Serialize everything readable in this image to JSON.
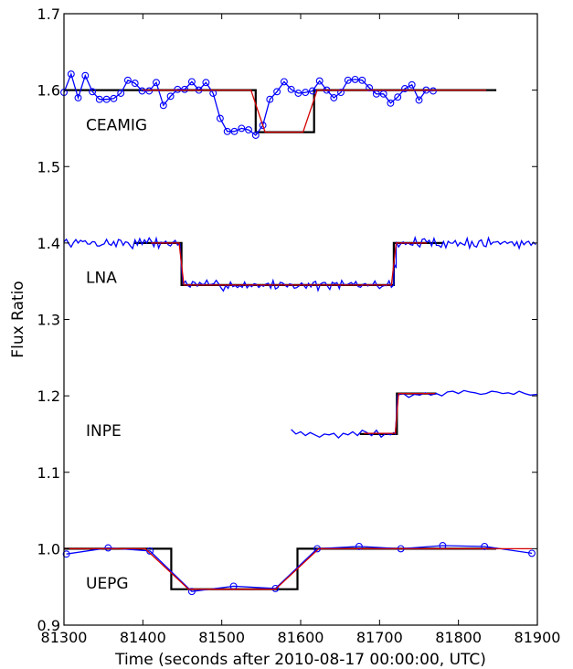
{
  "chart_data": {
    "type": "line",
    "title": "",
    "xlabel": "Time (seconds after 2010-08-17 00:00:00, UTC)",
    "ylabel": "Flux Ratio",
    "xlim": [
      81300,
      81900
    ],
    "ylim": [
      0.9,
      1.7
    ],
    "xticks": [
      81300,
      81400,
      81500,
      81600,
      81700,
      81800,
      81900
    ],
    "xtick_labels": [
      "81300",
      "81400",
      "81500",
      "81600",
      "81700",
      "81800",
      "81900"
    ],
    "yticks": [
      0.9,
      1.0,
      1.1,
      1.2,
      1.3,
      1.4,
      1.5,
      1.6,
      1.7
    ],
    "ytick_labels": [
      "0.9",
      "1.0",
      "1.1",
      "1.2",
      "1.3",
      "1.4",
      "1.5",
      "1.6",
      "1.7"
    ],
    "grid": false,
    "legend": "none",
    "colors": {
      "observed": "#0000ff",
      "model": "#000000",
      "fit": "#d40000"
    },
    "stations": [
      {
        "name": "CEAMIG",
        "label_x": 81315,
        "label_y": 1.555,
        "observed_markers": true,
        "observed": [
          [
            81300,
            1.597
          ],
          [
            81309,
            1.621
          ],
          [
            81318,
            1.59
          ],
          [
            81327,
            1.619
          ],
          [
            81336,
            1.598
          ],
          [
            81345,
            1.588
          ],
          [
            81354,
            1.588
          ],
          [
            81363,
            1.589
          ],
          [
            81372,
            1.596
          ],
          [
            81381,
            1.613
          ],
          [
            81390,
            1.609
          ],
          [
            81399,
            1.599
          ],
          [
            81408,
            1.599
          ],
          [
            81417,
            1.61
          ],
          [
            81426,
            1.58
          ],
          [
            81435,
            1.592
          ],
          [
            81444,
            1.601
          ],
          [
            81453,
            1.601
          ],
          [
            81462,
            1.611
          ],
          [
            81471,
            1.6
          ],
          [
            81480,
            1.61
          ],
          [
            81489,
            1.596
          ],
          [
            81498,
            1.563
          ],
          [
            81507,
            1.546
          ],
          [
            81516,
            1.546
          ],
          [
            81525,
            1.55
          ],
          [
            81534,
            1.548
          ],
          [
            81543,
            1.541
          ],
          [
            81552,
            1.554
          ],
          [
            81561,
            1.588
          ],
          [
            81570,
            1.598
          ],
          [
            81579,
            1.611
          ],
          [
            81588,
            1.601
          ],
          [
            81597,
            1.596
          ],
          [
            81606,
            1.597
          ],
          [
            81615,
            1.599
          ],
          [
            81624,
            1.612
          ],
          [
            81633,
            1.6
          ],
          [
            81642,
            1.59
          ],
          [
            81651,
            1.597
          ],
          [
            81660,
            1.613
          ],
          [
            81669,
            1.614
          ],
          [
            81678,
            1.613
          ],
          [
            81687,
            1.603
          ],
          [
            81696,
            1.595
          ],
          [
            81705,
            1.595
          ],
          [
            81714,
            1.583
          ],
          [
            81723,
            1.591
          ],
          [
            81732,
            1.602
          ],
          [
            81741,
            1.607
          ],
          [
            81750,
            1.587
          ],
          [
            81759,
            1.6
          ],
          [
            81768,
            1.599
          ]
        ],
        "model": [
          [
            81300,
            1.6
          ],
          [
            81543,
            1.6
          ],
          [
            81543,
            1.545
          ],
          [
            81617,
            1.545
          ],
          [
            81617,
            1.6
          ],
          [
            81848,
            1.6
          ]
        ],
        "fit": [
          [
            81400,
            1.6
          ],
          [
            81537,
            1.6
          ],
          [
            81555,
            1.545
          ],
          [
            81603,
            1.545
          ],
          [
            81621,
            1.6
          ],
          [
            81835,
            1.6
          ]
        ]
      },
      {
        "name": "LNA",
        "label_x": 81315,
        "label_y": 1.355,
        "observed_markers": false,
        "observed_seed": 7,
        "observed_segments": [
          {
            "x0": 81300,
            "x1": 81449,
            "base": 1.4,
            "amp": 0.009
          },
          {
            "x0": 81449,
            "x1": 81451,
            "base": 1.372,
            "amp": 0.01
          },
          {
            "x0": 81451,
            "x1": 81718,
            "base": 1.345,
            "amp": 0.008
          },
          {
            "x0": 81718,
            "x1": 81721,
            "base": 1.372,
            "amp": 0.01
          },
          {
            "x0": 81721,
            "x1": 81900,
            "base": 1.4,
            "amp": 0.009
          }
        ],
        "observed_step": 3,
        "model": [
          [
            81389,
            1.4
          ],
          [
            81449,
            1.4
          ],
          [
            81449,
            1.345
          ],
          [
            81718,
            1.345
          ],
          [
            81718,
            1.4
          ],
          [
            81780,
            1.4
          ]
        ],
        "fit": [
          [
            81410,
            1.4
          ],
          [
            81446,
            1.4
          ],
          [
            81452,
            1.345
          ],
          [
            81715,
            1.345
          ],
          [
            81721,
            1.4
          ],
          [
            81760,
            1.4
          ]
        ]
      },
      {
        "name": "INPE",
        "label_x": 81315,
        "label_y": 1.155,
        "observed_markers": false,
        "observed": [
          [
            81588,
            1.156
          ],
          [
            81594,
            1.15
          ],
          [
            81600,
            1.153
          ],
          [
            81606,
            1.148
          ],
          [
            81612,
            1.152
          ],
          [
            81618,
            1.149
          ],
          [
            81624,
            1.146
          ],
          [
            81630,
            1.15
          ],
          [
            81636,
            1.149
          ],
          [
            81642,
            1.151
          ],
          [
            81648,
            1.145
          ],
          [
            81654,
            1.151
          ],
          [
            81660,
            1.149
          ],
          [
            81666,
            1.153
          ],
          [
            81672,
            1.148
          ],
          [
            81678,
            1.155
          ],
          [
            81684,
            1.152
          ],
          [
            81690,
            1.148
          ],
          [
            81696,
            1.155
          ],
          [
            81702,
            1.146
          ],
          [
            81708,
            1.151
          ],
          [
            81714,
            1.149
          ],
          [
            81718,
            1.152
          ],
          [
            81720,
            1.15
          ],
          [
            81723,
            1.201
          ],
          [
            81730,
            1.203
          ],
          [
            81737,
            1.198
          ],
          [
            81744,
            1.202
          ],
          [
            81751,
            1.201
          ],
          [
            81758,
            1.204
          ],
          [
            81765,
            1.201
          ],
          [
            81772,
            1.203
          ],
          [
            81779,
            1.2
          ],
          [
            81786,
            1.205
          ],
          [
            81793,
            1.206
          ],
          [
            81800,
            1.203
          ],
          [
            81807,
            1.207
          ],
          [
            81814,
            1.205
          ],
          [
            81821,
            1.204
          ],
          [
            81828,
            1.202
          ],
          [
            81835,
            1.203
          ],
          [
            81842,
            1.206
          ],
          [
            81849,
            1.205
          ],
          [
            81856,
            1.203
          ],
          [
            81863,
            1.204
          ],
          [
            81870,
            1.202
          ],
          [
            81877,
            1.206
          ],
          [
            81884,
            1.203
          ],
          [
            81891,
            1.201
          ],
          [
            81900,
            1.202
          ]
        ],
        "model": [
          [
            81675,
            1.15
          ],
          [
            81722,
            1.15
          ],
          [
            81722,
            1.203
          ],
          [
            81772,
            1.203
          ]
        ],
        "fit": [
          [
            81680,
            1.151
          ],
          [
            81720,
            1.151
          ],
          [
            81724,
            1.203
          ],
          [
            81770,
            1.203
          ]
        ]
      },
      {
        "name": "UEPG",
        "label_x": 81315,
        "label_y": 0.955,
        "observed_markers": true,
        "observed": [
          [
            81303,
            0.993
          ],
          [
            81356,
            1.001
          ],
          [
            81409,
            0.997
          ],
          [
            81462,
            0.944
          ],
          [
            81515,
            0.951
          ],
          [
            81568,
            0.948
          ],
          [
            81621,
            1.0
          ],
          [
            81674,
            1.003
          ],
          [
            81727,
            1.0
          ],
          [
            81780,
            1.004
          ],
          [
            81833,
            1.003
          ],
          [
            81893,
            0.994
          ]
        ],
        "model": [
          [
            81300,
            1.0
          ],
          [
            81436,
            1.0
          ],
          [
            81436,
            0.947
          ],
          [
            81596,
            0.947
          ],
          [
            81596,
            1.0
          ],
          [
            81848,
            1.0
          ]
        ],
        "fit": [
          [
            81300,
            1.0
          ],
          [
            81403,
            1.0
          ],
          [
            81458,
            0.947
          ],
          [
            81568,
            0.947
          ],
          [
            81623,
            1.0
          ],
          [
            81893,
            1.0
          ]
        ]
      }
    ]
  }
}
